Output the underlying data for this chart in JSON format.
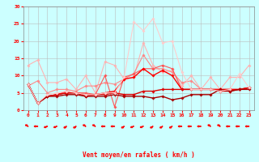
{
  "x": [
    0,
    1,
    2,
    3,
    4,
    5,
    6,
    7,
    8,
    9,
    10,
    11,
    12,
    13,
    14,
    15,
    16,
    17,
    18,
    19,
    20,
    21,
    22,
    23
  ],
  "series": [
    {
      "color": "#FFB3B3",
      "lw": 0.8,
      "marker": "D",
      "ms": 1.8,
      "y": [
        13,
        14.5,
        8,
        8,
        9,
        6,
        10,
        5,
        14,
        13,
        9,
        9.5,
        19.5,
        13,
        11,
        11.5,
        7,
        10,
        6,
        9.5,
        6,
        9.5,
        9.5,
        13
      ]
    },
    {
      "color": "#FF8888",
      "lw": 0.8,
      "marker": "D",
      "ms": 1.8,
      "y": [
        7,
        8.5,
        5,
        6,
        6,
        5.5,
        7,
        7,
        8,
        7.5,
        9,
        10.5,
        16,
        12,
        12,
        11,
        8,
        8.5,
        6,
        6,
        6,
        6,
        6,
        6.5
      ]
    },
    {
      "color": "#FF5555",
      "lw": 0.8,
      "marker": "D",
      "ms": 1.8,
      "y": [
        7.5,
        2,
        4,
        4.5,
        5.5,
        5,
        5,
        4.5,
        10,
        1,
        9.5,
        10.5,
        12,
        12,
        13,
        12,
        6,
        6,
        6,
        6,
        6,
        6,
        6,
        6.5
      ]
    },
    {
      "color": "#FF0000",
      "lw": 1.0,
      "marker": "D",
      "ms": 1.8,
      "y": [
        7.5,
        2,
        4,
        4.5,
        5,
        5,
        4.5,
        4.5,
        5,
        5.5,
        9,
        9.5,
        12,
        10,
        11.5,
        10,
        6,
        6,
        6,
        6,
        6,
        6,
        6,
        6.5
      ]
    },
    {
      "color": "#DD0000",
      "lw": 1.0,
      "marker": "D",
      "ms": 1.8,
      "y": [
        7.5,
        2,
        4,
        4.5,
        5,
        5,
        4,
        4.5,
        4.5,
        5,
        4.5,
        4.5,
        5.5,
        5.5,
        6,
        6,
        6,
        6,
        6,
        6,
        5.5,
        5.5,
        6,
        6.5
      ]
    },
    {
      "color": "#AA0000",
      "lw": 1.0,
      "marker": "D",
      "ms": 1.8,
      "y": [
        7.5,
        2,
        4,
        4,
        4.5,
        4.5,
        4,
        4,
        4,
        4.5,
        4,
        4,
        4,
        3.5,
        4,
        3,
        3.5,
        4.5,
        4.5,
        4.5,
        6,
        5.5,
        6,
        6
      ]
    },
    {
      "color": "#FFCCCC",
      "lw": 0.8,
      "marker": "D",
      "ms": 1.8,
      "y": [
        7.5,
        2,
        4.5,
        5,
        5.5,
        5,
        4.5,
        4.5,
        5,
        5,
        9.5,
        25.5,
        23,
        26.5,
        19.5,
        20,
        11,
        6,
        6,
        6,
        5.5,
        6,
        10.5,
        6.5
      ]
    }
  ],
  "xlabel": "Vent moyen/en rafales ( km/h )",
  "xlim": [
    -0.5,
    23.5
  ],
  "ylim": [
    0,
    30
  ],
  "yticks": [
    0,
    5,
    10,
    15,
    20,
    25,
    30
  ],
  "xticks": [
    0,
    1,
    2,
    3,
    4,
    5,
    6,
    7,
    8,
    9,
    10,
    11,
    12,
    13,
    14,
    15,
    16,
    17,
    18,
    19,
    20,
    21,
    22,
    23
  ],
  "bg_color": "#CCFFFF",
  "grid_color": "#BBBBBB",
  "tick_color": "#FF0000",
  "label_color": "#FF0000",
  "arrow_color": "#FF0000",
  "arrow_angles": [
    225,
    270,
    300,
    300,
    315,
    315,
    225,
    225,
    270,
    270,
    315,
    300,
    300,
    315,
    315,
    315,
    270,
    270,
    270,
    225,
    225,
    270,
    270,
    270
  ]
}
